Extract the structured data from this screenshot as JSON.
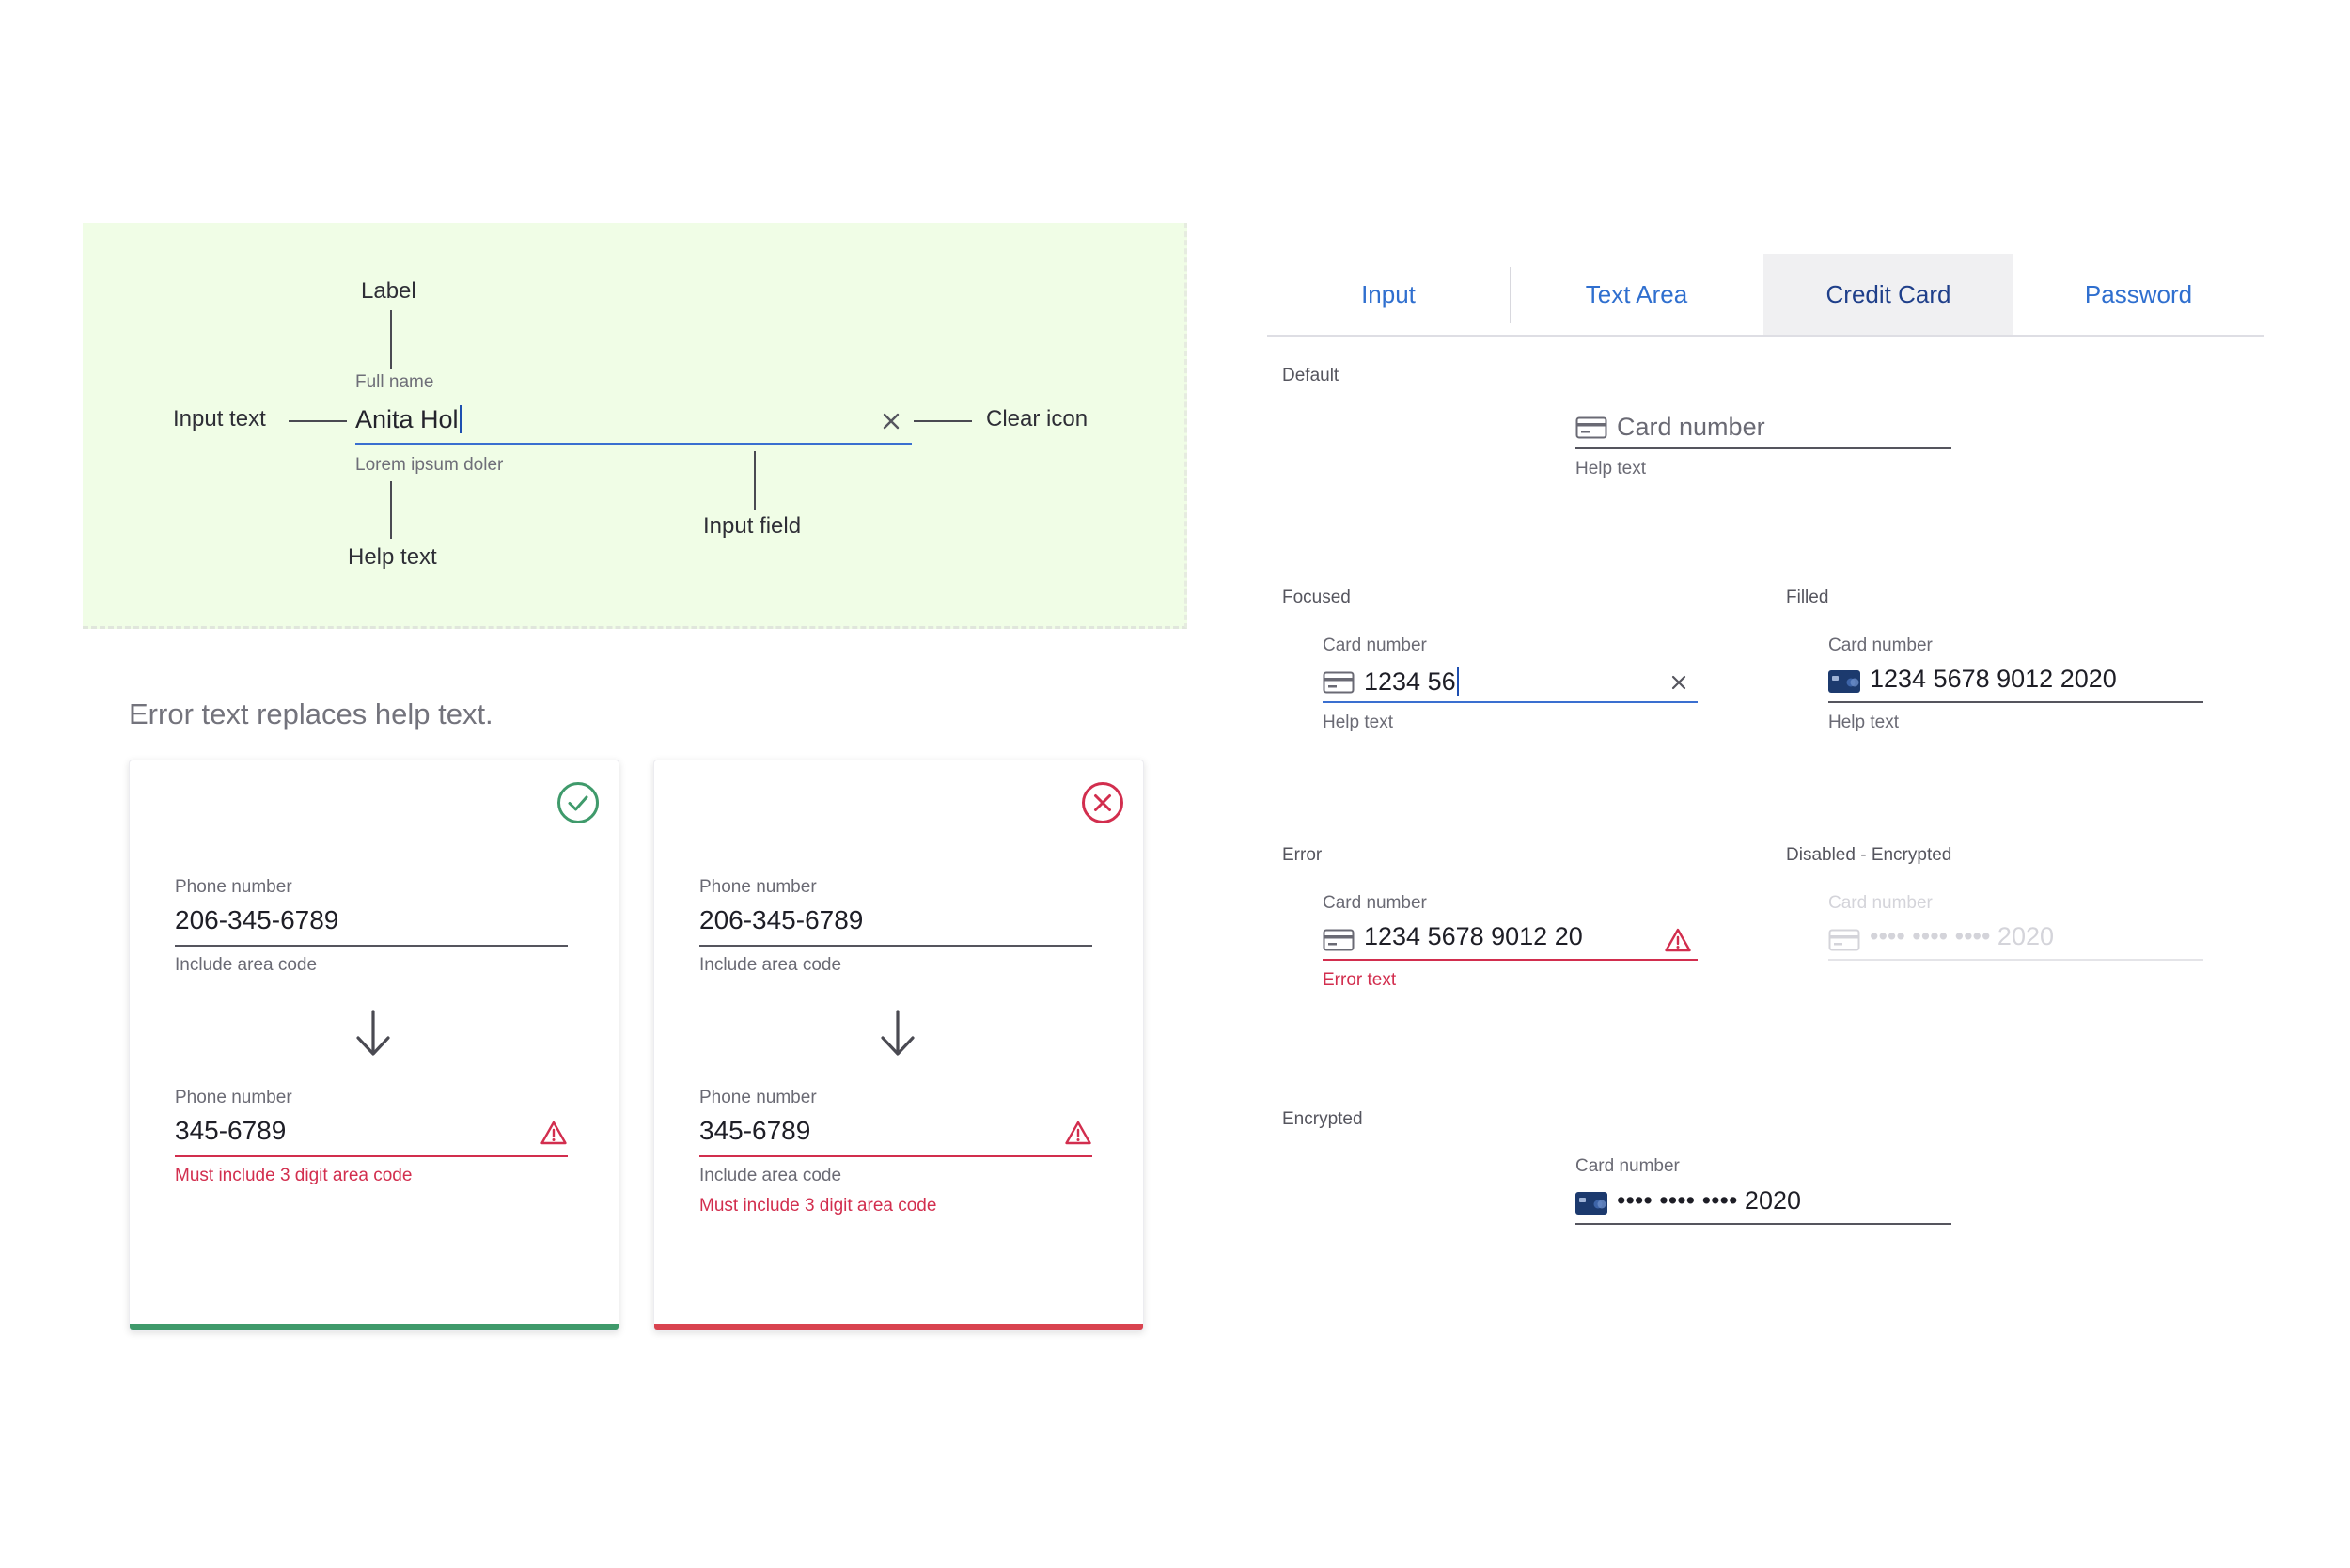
{
  "anatomy": {
    "callouts": {
      "label": "Label",
      "input_text": "Input text",
      "clear_icon": "Clear icon",
      "input_field": "Input field",
      "help_text": "Help text"
    },
    "field": {
      "label": "Full name",
      "value": "Anita Hol",
      "help": "Lorem ipsum doler"
    }
  },
  "error_section": {
    "heading": "Error text replaces help text.",
    "cards": [
      {
        "status": "success",
        "status_icon": "check-circle-icon",
        "before": {
          "label": "Phone number",
          "value": "206-345-6789",
          "help": "Include area code"
        },
        "after": {
          "label": "Phone number",
          "value": "345-6789",
          "error": "Must include 3 digit area code"
        }
      },
      {
        "status": "error",
        "status_icon": "x-circle-icon",
        "before": {
          "label": "Phone number",
          "value": "206-345-6789",
          "help": "Include area code"
        },
        "after": {
          "label": "Phone number",
          "value": "345-6789",
          "help": "Include area code",
          "error": "Must include 3 digit area code"
        }
      }
    ]
  },
  "tabs": {
    "items": [
      "Input",
      "Text Area",
      "Credit Card",
      "Password"
    ],
    "active": "Credit Card"
  },
  "credit_card_states": {
    "default": {
      "title": "Default",
      "placeholder": "Card number",
      "help": "Help text"
    },
    "focused": {
      "title": "Focused",
      "label": "Card number",
      "value": "1234 56",
      "help": "Help text"
    },
    "filled": {
      "title": "Filled",
      "label": "Card number",
      "value": "1234 5678 9012 2020",
      "help": "Help text"
    },
    "error": {
      "title": "Error",
      "label": "Card number",
      "value": "1234 5678 9012 20",
      "error": "Error text"
    },
    "disabled_encrypted": {
      "title": "Disabled - Encrypted",
      "label": "Card number",
      "value": "•••• •••• •••• 2020"
    },
    "encrypted": {
      "title": "Encrypted",
      "label": "Card number",
      "value": "•••• •••• •••• 2020"
    }
  },
  "colors": {
    "accent_blue": "#2f6fcf",
    "focus_underline": "#3a6fd0",
    "success_green": "#3f9a6b",
    "error_red": "#d22e4e",
    "anatomy_bg": "#f0fde6",
    "card_icon_navy": "#1c3a6e"
  }
}
